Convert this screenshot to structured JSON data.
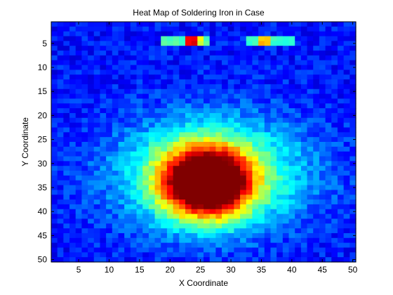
{
  "chart_data": {
    "type": "heatmap",
    "title": "Heat Map of Soldering Iron in Case",
    "xlabel": "X Coordinate",
    "ylabel": "Y Coordinate",
    "xlim": [
      0.5,
      50.5
    ],
    "ylim": [
      0.5,
      50.5
    ],
    "y_reversed": true,
    "x_ticks": [
      5,
      10,
      15,
      20,
      25,
      30,
      35,
      40,
      45,
      50
    ],
    "y_ticks": [
      5,
      10,
      15,
      20,
      25,
      30,
      35,
      40,
      45,
      50
    ],
    "grid": false,
    "colormap": "jet",
    "cols": 50,
    "rows": 50,
    "color_scale": [
      0,
      1
    ],
    "hot_spots": [
      {
        "x": 26,
        "y": 34,
        "sx": 5.0,
        "sy": 5.0,
        "amp": 1.0
      },
      {
        "x": 27,
        "y": 32,
        "sx": 11.0,
        "sy": 8.0,
        "amp": 0.38
      }
    ],
    "top_edge": {
      "row_min": 4,
      "row_max": 5,
      "segments": [
        {
          "x_start": 19,
          "x_end": 26,
          "value": 0.45
        },
        {
          "x_start": 23,
          "x_end": 24,
          "value": 0.9
        },
        {
          "x_start": 25,
          "x_end": 25,
          "value": 0.6
        },
        {
          "x_start": 33,
          "x_end": 40,
          "value": 0.42
        },
        {
          "x_start": 35,
          "x_end": 36,
          "value": 0.68
        }
      ]
    },
    "background_value": 0.14
  }
}
